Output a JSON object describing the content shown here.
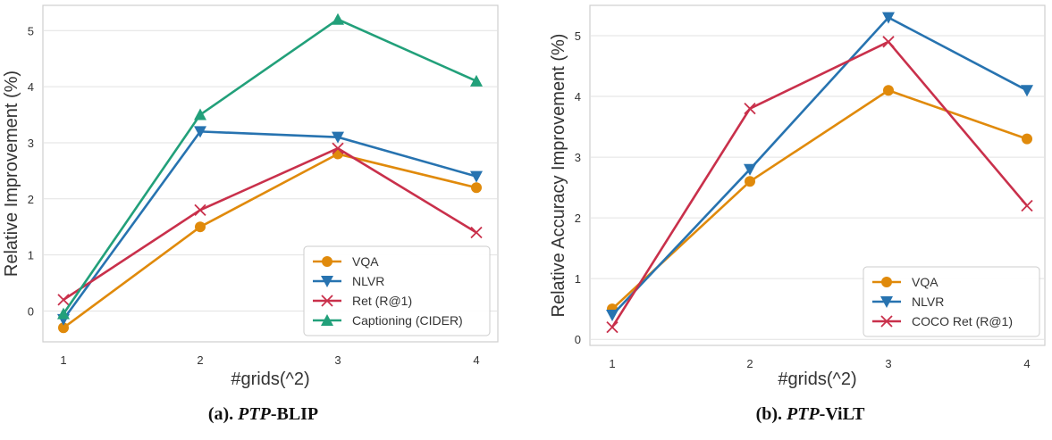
{
  "chart_data": [
    {
      "type": "line",
      "panel": "a",
      "caption": {
        "prefix": "(a). ",
        "emph": "PTP",
        "suffix": "-BLIP"
      },
      "title": "",
      "xlabel": "#grids(^2)",
      "ylabel": "Relative Improvement (%)",
      "x": [
        1,
        2,
        3,
        4
      ],
      "xticks": [
        "1",
        "2",
        "3",
        "4"
      ],
      "ylim": [
        -0.55,
        5.45
      ],
      "yticks": [
        0,
        1,
        2,
        3,
        4,
        5
      ],
      "grid": true,
      "legend_position": "bottom-right",
      "series": [
        {
          "name": "VQA",
          "values": [
            -0.3,
            1.5,
            2.8,
            2.2
          ],
          "color": "#e08a0b",
          "marker": "circle"
        },
        {
          "name": "NLVR",
          "values": [
            -0.15,
            3.2,
            3.1,
            2.4
          ],
          "color": "#2773b0",
          "marker": "triangle-down"
        },
        {
          "name": "Ret (R@1)",
          "values": [
            0.2,
            1.8,
            2.9,
            1.4
          ],
          "color": "#c9304b",
          "marker": "x"
        },
        {
          "name": "Captioning (CIDER)",
          "values": [
            -0.05,
            3.5,
            5.2,
            4.1
          ],
          "color": "#22a07a",
          "marker": "triangle-up"
        }
      ]
    },
    {
      "type": "line",
      "panel": "b",
      "caption": {
        "prefix": "(b). ",
        "emph": "PTP",
        "suffix": "-ViLT"
      },
      "title": "",
      "xlabel": "#grids(^2)",
      "ylabel": "Relative Accuracy Improvement (%)",
      "x": [
        1,
        2,
        3,
        4
      ],
      "xticks": [
        "1",
        "2",
        "3",
        "4"
      ],
      "ylim": [
        -0.1,
        5.5
      ],
      "yticks": [
        0,
        1,
        2,
        3,
        4,
        5
      ],
      "grid": true,
      "legend_position": "bottom-right",
      "series": [
        {
          "name": "VQA",
          "values": [
            0.5,
            2.6,
            4.1,
            3.3
          ],
          "color": "#e08a0b",
          "marker": "circle"
        },
        {
          "name": "NLVR",
          "values": [
            0.4,
            2.8,
            5.3,
            4.1
          ],
          "color": "#2773b0",
          "marker": "triangle-down"
        },
        {
          "name": "COCO Ret (R@1)",
          "values": [
            0.2,
            3.8,
            4.9,
            2.2
          ],
          "color": "#c9304b",
          "marker": "x"
        }
      ]
    }
  ]
}
